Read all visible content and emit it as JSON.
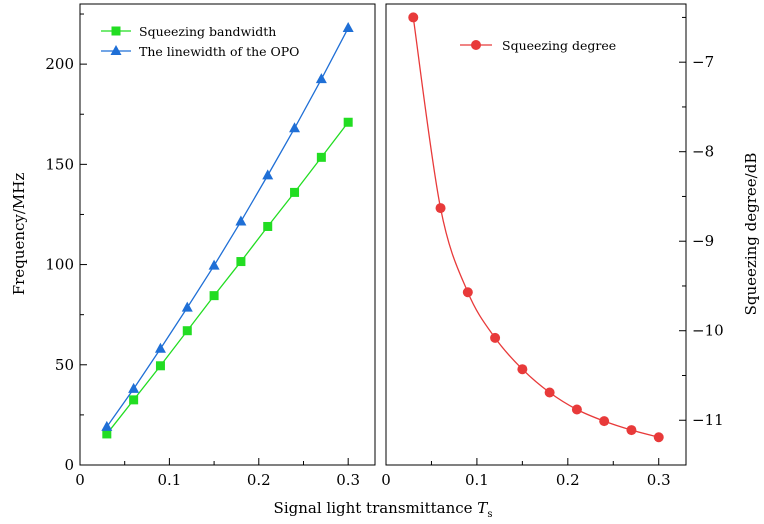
{
  "chart_data": [
    {
      "type": "line",
      "xlabel": "Signal light transmittance",
      "xlabel_symbol": "T",
      "xlabel_subscript": "s",
      "ylabel": "Frequency/MHz",
      "xlim": [
        0,
        0.33
      ],
      "ylim": [
        0,
        230
      ],
      "xticks": [
        0,
        0.1,
        0.2,
        0.3
      ],
      "xtick_labels": [
        "0",
        "0.1",
        "0.2",
        "0.3"
      ],
      "yticks": [
        0,
        50,
        100,
        150,
        200
      ],
      "ytick_labels": [
        "0",
        "50",
        "100",
        "150",
        "200"
      ],
      "legend_position": "top-left",
      "grid": false,
      "series": [
        {
          "name": "Squeezing bandwidth",
          "marker": "square",
          "color": "#22dd22",
          "x": [
            0.03,
            0.06,
            0.09,
            0.12,
            0.15,
            0.18,
            0.21,
            0.24,
            0.27,
            0.3
          ],
          "values": [
            15.5,
            32.5,
            49.5,
            67,
            84.5,
            101.5,
            119,
            136,
            153.5,
            171
          ]
        },
        {
          "name": "The linewidth of the OPO",
          "marker": "triangle",
          "color": "#1f6fd6",
          "x": [
            0.03,
            0.06,
            0.09,
            0.12,
            0.15,
            0.18,
            0.21,
            0.24,
            0.27,
            0.3
          ],
          "values": [
            19,
            38,
            58,
            78.5,
            99.5,
            121.5,
            144.5,
            168,
            192.5,
            218
          ]
        }
      ]
    },
    {
      "type": "line",
      "xlabel": "",
      "ylabel": "Squeezing degree/dB",
      "y_axis_side": "right",
      "xlim": [
        0,
        0.33
      ],
      "ylim": [
        -11.5,
        -6.35
      ],
      "xticks": [
        0,
        0.1,
        0.2,
        0.3
      ],
      "xtick_labels": [
        "0",
        "0.1",
        "0.2",
        "0.3"
      ],
      "yticks": [
        -11,
        -10,
        -9,
        -8,
        -7
      ],
      "ytick_labels": [
        "−11",
        "−10",
        "−9",
        "−8",
        "−7"
      ],
      "legend_position": "top-right",
      "grid": false,
      "series": [
        {
          "name": "Squeezing degree",
          "marker": "circle",
          "color": "#e83a3a",
          "x": [
            0.03,
            0.06,
            0.09,
            0.12,
            0.15,
            0.18,
            0.21,
            0.24,
            0.27,
            0.3
          ],
          "values": [
            -6.5,
            -8.63,
            -9.57,
            -10.08,
            -10.43,
            -10.69,
            -10.88,
            -11.01,
            -11.11,
            -11.19
          ]
        }
      ]
    }
  ]
}
